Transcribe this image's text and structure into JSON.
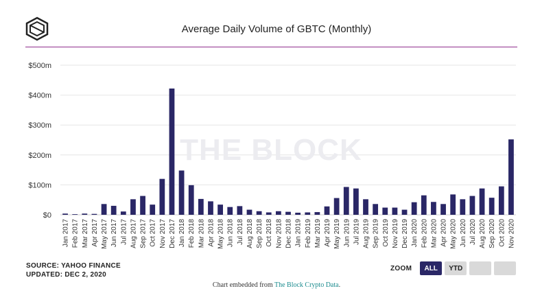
{
  "header": {
    "title": "Average Daily Volume of GBTC (Monthly)"
  },
  "watermark": "THE BLOCK",
  "footer": {
    "source": "SOURCE: YAHOO FINANCE",
    "updated": "UPDATED: DEC 2, 2020",
    "zoom_label": "ZOOM",
    "buttons": [
      "ALL",
      "YTD",
      "",
      ""
    ],
    "embed_prefix": "Chart embedded from ",
    "embed_link": "The Block Crypto Data",
    "embed_suffix": "."
  },
  "colors": {
    "bar": "#2a2766",
    "accent_rule": "#8e2d8c",
    "active_button": "#2a2766",
    "link": "#1a8b8e"
  },
  "chart_data": {
    "type": "bar",
    "title": "Average Daily Volume of GBTC (Monthly)",
    "ylim": [
      0,
      500
    ],
    "ytick_labels": [
      "$0",
      "$100m",
      "$200m",
      "$300m",
      "$400m",
      "$500m"
    ],
    "categories": [
      "Jan 2017",
      "Feb 2017",
      "Mar 2017",
      "Apr 2017",
      "May 2017",
      "Jun 2017",
      "Jul 2017",
      "Aug 2017",
      "Sep 2017",
      "Oct 2017",
      "Nov 2017",
      "Dec 2017",
      "Jan 2018",
      "Feb 2018",
      "Mar 2018",
      "Apr 2018",
      "May 2018",
      "Jun 2018",
      "Jul 2018",
      "Aug 2018",
      "Sep 2018",
      "Oct 2018",
      "Nov 2018",
      "Dec 2018",
      "Jan 2019",
      "Feb 2019",
      "Mar 2019",
      "Apr 2019",
      "May 2019",
      "Jun 2019",
      "Jul 2019",
      "Aug 2019",
      "Sep 2019",
      "Oct 2019",
      "Nov 2019",
      "Dec 2019",
      "Jan 2020",
      "Feb 2020",
      "Mar 2020",
      "Apr 2020",
      "May 2020",
      "Jun 2020",
      "Jul 2020",
      "Aug 2020",
      "Sep 2020",
      "Oct 2020",
      "Nov 2020"
    ],
    "series": [
      {
        "values": [
          4,
          2,
          4,
          3,
          36,
          30,
          11,
          52,
          63,
          34,
          120,
          422,
          148,
          99,
          53,
          45,
          34,
          26,
          29,
          17,
          12,
          8,
          12,
          10,
          7,
          8,
          9,
          28,
          56,
          93,
          88,
          52,
          36,
          24,
          24,
          17,
          42,
          65,
          43,
          36,
          68,
          52,
          63,
          88,
          57,
          95,
          252
        ]
      }
    ],
    "grid": true
  }
}
